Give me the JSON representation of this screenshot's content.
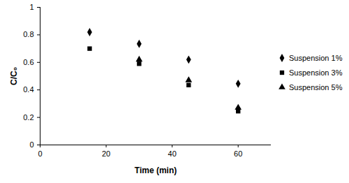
{
  "chart_data": {
    "type": "scatter",
    "x_label": "Time (min)",
    "y_label": "C/C₀",
    "x": [
      15,
      30,
      45,
      60
    ],
    "series": [
      {
        "name": "Suspension 1%",
        "color": "#000000",
        "marker": "diamond",
        "values": [
          0.82,
          0.735,
          0.62,
          0.445
        ]
      },
      {
        "name": "Suspension 3%",
        "color": "#000000",
        "marker": "square",
        "values": [
          0.7,
          0.59,
          0.435,
          0.245
        ]
      },
      {
        "name": "Suspension 5%",
        "color": "#000000",
        "marker": "triangle",
        "values": [
          null,
          0.62,
          0.47,
          0.27
        ]
      }
    ],
    "xlim": [
      0,
      70
    ],
    "xticks": [
      0,
      20,
      40,
      60
    ],
    "ylim": [
      0,
      1
    ],
    "yticks": [
      0,
      0.2,
      0.4,
      0.6,
      0.8,
      1
    ],
    "grid": false,
    "legend": "right"
  }
}
